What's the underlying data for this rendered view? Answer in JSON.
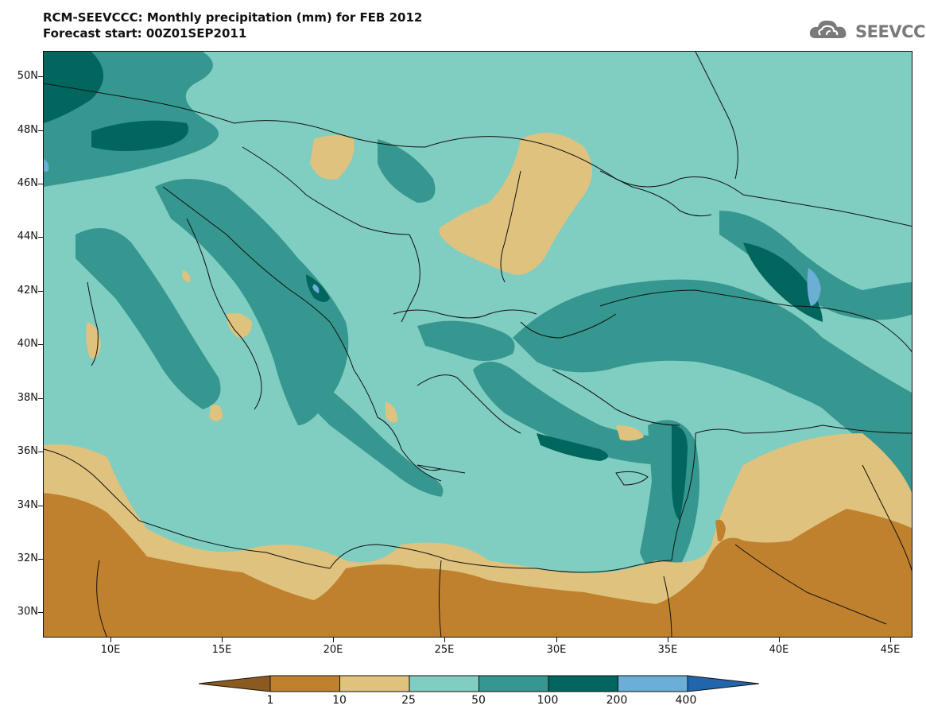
{
  "title": {
    "line1": "RCM-SEEVCCC: Monthly precipitation (mm) for FEB 2012",
    "line2": "Forecast start: 00Z01SEP2011"
  },
  "logo": {
    "text": "SEEVCCC",
    "icon": "cloud-icon"
  },
  "axes": {
    "lat_labels": [
      "50N",
      "48N",
      "46N",
      "44N",
      "42N",
      "40N",
      "38N",
      "36N",
      "34N",
      "32N",
      "30N"
    ],
    "lon_labels": [
      "10E",
      "15E",
      "20E",
      "25E",
      "30E",
      "35E",
      "40E",
      "45E"
    ],
    "lon_range": [
      7,
      46
    ],
    "lat_range": [
      29,
      51
    ]
  },
  "colorbar": {
    "levels": [
      "1",
      "10",
      "25",
      "50",
      "100",
      "200",
      "400"
    ],
    "colors": [
      "#8b5a1f",
      "#c0812e",
      "#dfc27d",
      "#80cdc1",
      "#35978f",
      "#01665e",
      "#6baed6",
      "#2166ac"
    ],
    "units": "mm"
  }
}
